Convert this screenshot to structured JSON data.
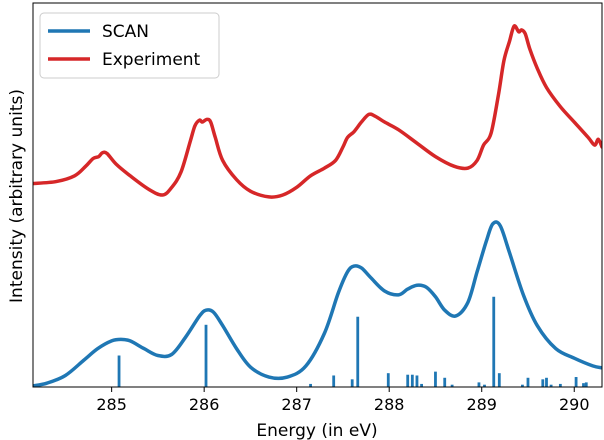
{
  "colors": {
    "scan": "#1f77b4",
    "experiment": "#d62728",
    "axis": "#000000",
    "background": "#ffffff"
  },
  "chart_data": {
    "type": "line",
    "title": "",
    "xlabel": "Energy (in eV)",
    "ylabel": "Intensity (arbitrary units)",
    "xlim": [
      284.15,
      290.3
    ],
    "ylim": [
      0,
      1.0
    ],
    "xticks": [
      285,
      286,
      287,
      288,
      289,
      290
    ],
    "yticks": [],
    "grid": false,
    "legend": {
      "placement": "top-left",
      "entries": [
        "SCAN",
        "Experiment"
      ]
    },
    "series": [
      {
        "name": "SCAN",
        "color": "#1f77b4",
        "x": [
          284.15,
          284.3,
          284.5,
          284.7,
          284.85,
          285.0,
          285.1,
          285.2,
          285.35,
          285.5,
          285.65,
          285.8,
          285.95,
          286.02,
          286.1,
          286.2,
          286.35,
          286.5,
          286.7,
          286.9,
          287.1,
          287.3,
          287.45,
          287.55,
          287.62,
          287.7,
          287.8,
          287.95,
          288.1,
          288.2,
          288.3,
          288.4,
          288.5,
          288.6,
          288.72,
          288.85,
          288.95,
          289.05,
          289.12,
          289.2,
          289.3,
          289.45,
          289.6,
          289.8,
          290.0,
          290.2,
          290.3
        ],
        "y": [
          0.003,
          0.01,
          0.03,
          0.07,
          0.1,
          0.12,
          0.124,
          0.12,
          0.1,
          0.082,
          0.085,
          0.13,
          0.185,
          0.2,
          0.195,
          0.16,
          0.1,
          0.052,
          0.026,
          0.026,
          0.055,
          0.14,
          0.245,
          0.3,
          0.315,
          0.31,
          0.285,
          0.25,
          0.24,
          0.255,
          0.265,
          0.26,
          0.235,
          0.2,
          0.185,
          0.22,
          0.3,
          0.38,
          0.425,
          0.42,
          0.35,
          0.24,
          0.16,
          0.1,
          0.075,
          0.055,
          0.05
        ]
      },
      {
        "name": "Experiment",
        "color": "#d62728",
        "x": [
          284.15,
          284.4,
          284.6,
          284.72,
          284.8,
          284.86,
          284.9,
          284.95,
          285.05,
          285.2,
          285.4,
          285.55,
          285.65,
          285.75,
          285.85,
          285.9,
          285.95,
          285.98,
          286.03,
          286.07,
          286.12,
          286.2,
          286.35,
          286.5,
          286.7,
          286.85,
          287.0,
          287.15,
          287.3,
          287.42,
          287.5,
          287.55,
          287.62,
          287.7,
          287.78,
          287.85,
          287.95,
          288.1,
          288.3,
          288.5,
          288.7,
          288.85,
          288.95,
          289.02,
          289.1,
          289.18,
          289.24,
          289.3,
          289.35,
          289.4,
          289.43,
          289.47,
          289.52,
          289.6,
          289.7,
          289.85,
          290.0,
          290.15,
          290.22,
          290.26,
          290.3
        ],
        "y": [
          0.53,
          0.535,
          0.55,
          0.575,
          0.595,
          0.6,
          0.61,
          0.608,
          0.58,
          0.55,
          0.515,
          0.5,
          0.52,
          0.56,
          0.64,
          0.68,
          0.695,
          0.69,
          0.697,
          0.69,
          0.65,
          0.59,
          0.54,
          0.51,
          0.495,
          0.5,
          0.52,
          0.55,
          0.57,
          0.59,
          0.625,
          0.65,
          0.665,
          0.69,
          0.71,
          0.705,
          0.69,
          0.67,
          0.635,
          0.6,
          0.575,
          0.57,
          0.59,
          0.63,
          0.66,
          0.76,
          0.85,
          0.9,
          0.94,
          0.925,
          0.93,
          0.92,
          0.88,
          0.83,
          0.78,
          0.73,
          0.69,
          0.65,
          0.63,
          0.645,
          0.625
        ]
      }
    ],
    "sticks": {
      "series": "SCAN",
      "x": [
        285.08,
        286.02,
        287.15,
        287.4,
        287.6,
        287.66,
        287.99,
        288.2,
        288.25,
        288.3,
        288.35,
        288.5,
        288.6,
        288.68,
        288.97,
        289.03,
        289.13,
        289.19,
        289.44,
        289.5,
        289.66,
        289.7,
        289.75,
        289.85,
        290.02,
        290.1,
        290.13
      ],
      "y": [
        0.082,
        0.162,
        0.008,
        0.03,
        0.02,
        0.183,
        0.036,
        0.032,
        0.032,
        0.03,
        0.008,
        0.04,
        0.024,
        0.006,
        0.012,
        0.006,
        0.235,
        0.036,
        0.006,
        0.024,
        0.02,
        0.024,
        0.006,
        0.008,
        0.026,
        0.01,
        0.012
      ]
    }
  }
}
